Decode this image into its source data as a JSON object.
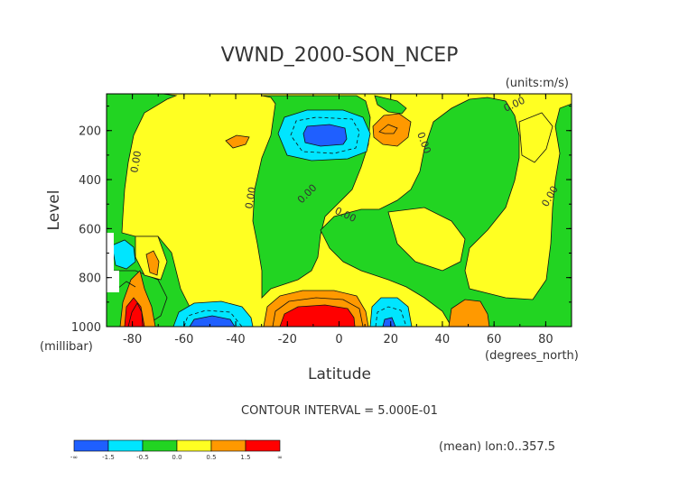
{
  "chart_data": {
    "type": "contour",
    "title": "VWND_2000-SON_NCEP",
    "units_label": "(units:m/s)",
    "xlabel": "Latitude",
    "x_units_label": "(degrees_north)",
    "ylabel": "Level",
    "y_units_label": "(millibar)",
    "xlim": [
      -90,
      90
    ],
    "ylim": [
      1000,
      50
    ],
    "y_inverted": true,
    "x_ticks": [
      -80,
      -60,
      -40,
      -20,
      0,
      20,
      40,
      60,
      80
    ],
    "x_tick_labels": [
      "-80",
      "-60",
      "-40",
      "-20",
      "0",
      "20",
      "40",
      "60",
      "80"
    ],
    "y_ticks": [
      200,
      400,
      600,
      800,
      1000
    ],
    "y_tick_labels": [
      "200",
      "400",
      "600",
      "800",
      "1000"
    ],
    "contour_interval_text": "CONTOUR INTERVAL = 5.000E-01",
    "contour_label": "0.00",
    "footer_text": "(mean) lon:0..357.5",
    "colorbar": {
      "colors": [
        "#1f5fff",
        "#00e5ff",
        "#22d422",
        "#ffff22",
        "#ff9900",
        "#ff0000"
      ],
      "labels": [
        "-∞",
        "-1.5",
        "-0.5",
        "0.0",
        "0.5",
        "1.5",
        "∞"
      ]
    },
    "features": [
      {
        "name": "negative-core-upper-equator",
        "sign": "negative",
        "lat": 0,
        "level": 175,
        "max": -1.5
      },
      {
        "name": "positive-core-upper-25N",
        "sign": "positive",
        "lat": 25,
        "level": 150,
        "max": 0.5
      },
      {
        "name": "positive-core-surface-equator",
        "sign": "positive",
        "lat": -5,
        "level": 950,
        "max": 1.5
      },
      {
        "name": "negative-core-surface-50S",
        "sign": "negative",
        "lat": -52,
        "level": 950,
        "max": -1.5
      },
      {
        "name": "negative-core-surface-20N",
        "sign": "negative",
        "lat": 20,
        "level": 960,
        "max": -1.5
      },
      {
        "name": "positive-core-surface-55N",
        "sign": "positive",
        "lat": 55,
        "level": 950,
        "max": 0.5
      },
      {
        "name": "positive-core-surface-85S",
        "sign": "positive",
        "lat": -84,
        "level": 920,
        "max": 1.5
      }
    ]
  }
}
